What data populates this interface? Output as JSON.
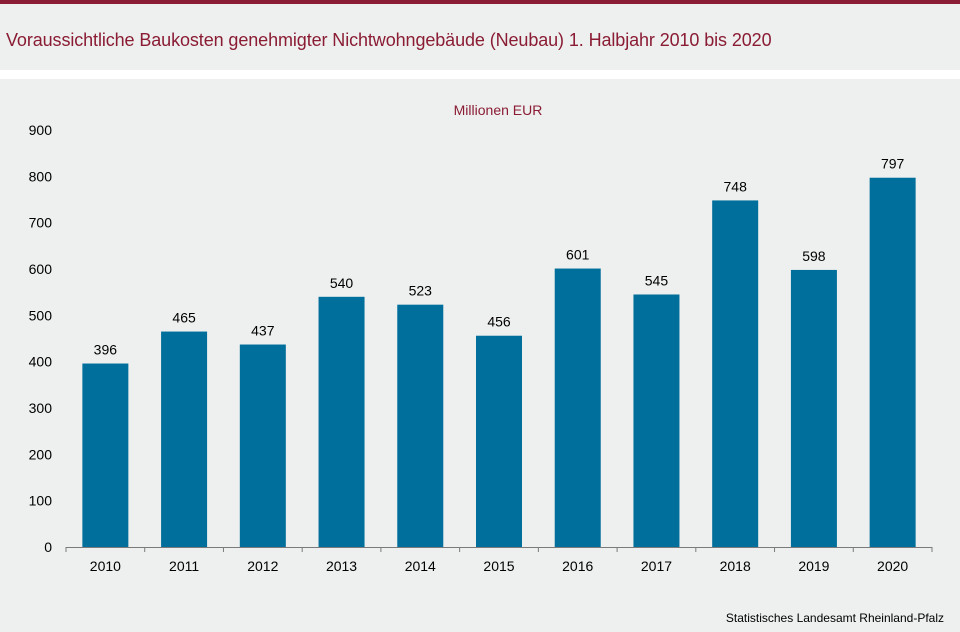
{
  "header": {
    "title": "Voraussichtliche Baukosten genehmigter Nichtwohngebäude (Neubau) 1. Halbjahr 2010 bis 2020"
  },
  "colors": {
    "accent": "#8a1c34",
    "bar": "#006f9c",
    "background": "#eef0ef"
  },
  "chart_data": {
    "type": "bar",
    "title": "Voraussichtliche Baukosten genehmigter Nichtwohngebäude (Neubau) 1. Halbjahr 2010 bis 2020",
    "ylabel": "Millionen  EUR",
    "xlabel": "",
    "categories": [
      "2010",
      "2011",
      "2012",
      "2013",
      "2014",
      "2015",
      "2016",
      "2017",
      "2018",
      "2019",
      "2020"
    ],
    "values": [
      396,
      465,
      437,
      540,
      523,
      456,
      601,
      545,
      748,
      598,
      797
    ],
    "ylim": [
      0,
      900
    ],
    "yticks": [
      0,
      100,
      200,
      300,
      400,
      500,
      600,
      700,
      800,
      900
    ],
    "grid": false,
    "legend": "none"
  },
  "footer": {
    "source": "Statistisches Landesamt  Rheinland-Pfalz"
  }
}
